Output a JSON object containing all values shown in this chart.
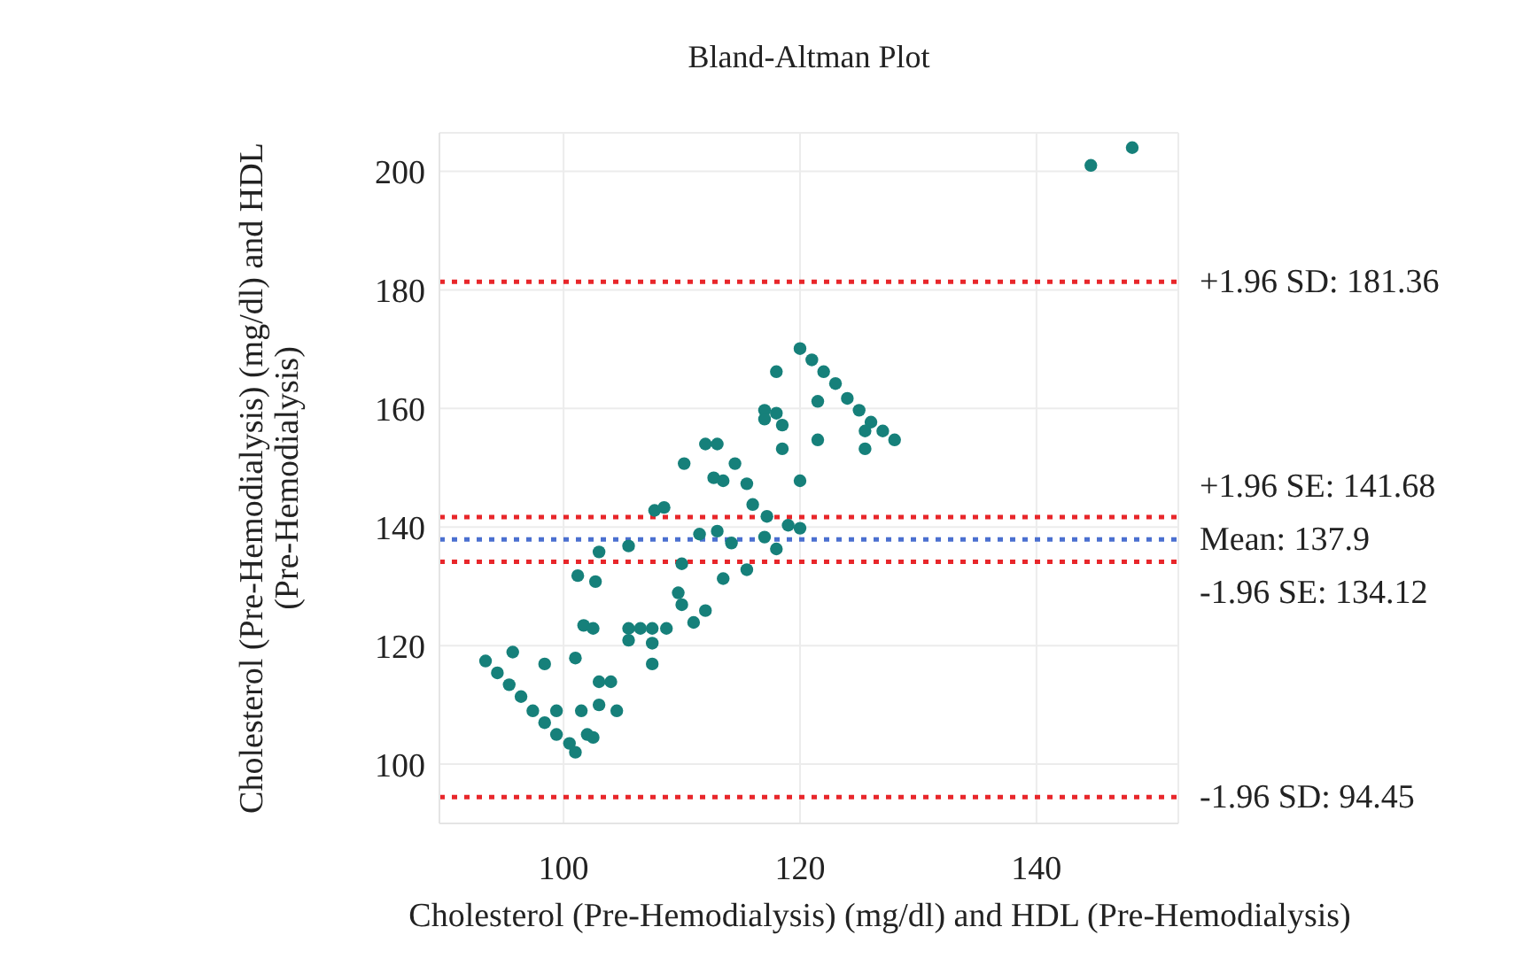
{
  "chart_data": {
    "type": "scatter",
    "title": "Bland-Altman Plot",
    "xlabel": "Cholesterol (Pre-Hemodialysis) (mg/dl) and HDL (Pre-Hemodialysis)",
    "ylabel": "Cholesterol (Pre-Hemodialysis) (mg/dl) and HDL\n(Pre-Hemodialysis)",
    "xlim": [
      89.5,
      152
    ],
    "ylim": [
      90,
      206.5
    ],
    "xticks": [
      100,
      120,
      140
    ],
    "yticks": [
      100,
      120,
      140,
      160,
      180,
      200
    ],
    "grid": true,
    "legend": false,
    "marker": "circle",
    "series": [
      {
        "color": "#16807a",
        "x": [
          144.6,
          148.1,
          93.4,
          94.4,
          95.4,
          96.4,
          97.4,
          98.4,
          99.4,
          100.5,
          101.0,
          95.7,
          98.4,
          101.0,
          99.4,
          101.5,
          103.0,
          104.5,
          104.0,
          103.0,
          102.0,
          102.5,
          101.7,
          102.5,
          101.2,
          102.7,
          103.0,
          105.5,
          107.7,
          108.5,
          110.2,
          112.0,
          113.0,
          112.7,
          114.5,
          113.5,
          115.5,
          116.0,
          117.2,
          119.0,
          120.0,
          117.0,
          118.0,
          115.5,
          113.5,
          114.2,
          113.0,
          111.5,
          110.0,
          109.7,
          110.0,
          111.0,
          112.0,
          108.7,
          107.5,
          106.5,
          105.5,
          105.5,
          107.5,
          107.5,
          117.0,
          118.0,
          118.5,
          117.0,
          118.0,
          118.5,
          120.0,
          121.5,
          121.5,
          120.0,
          121.0,
          122.0,
          123.0,
          124.0,
          125.0,
          126.0,
          127.0,
          128.0,
          125.5,
          125.5
        ],
        "values": [
          201.0,
          204.0,
          117.4,
          115.4,
          113.4,
          111.4,
          109.0,
          107.0,
          105.0,
          103.5,
          102.0,
          118.9,
          116.9,
          117.9,
          109.0,
          109.0,
          110.0,
          109.0,
          113.9,
          113.9,
          105.0,
          104.5,
          123.4,
          122.9,
          131.8,
          130.8,
          135.8,
          136.8,
          142.8,
          143.3,
          150.7,
          154.0,
          154.0,
          148.3,
          150.7,
          147.8,
          147.3,
          143.8,
          141.8,
          140.3,
          139.8,
          138.3,
          136.3,
          132.8,
          131.3,
          137.3,
          139.3,
          138.8,
          133.8,
          128.9,
          126.9,
          123.9,
          125.9,
          122.9,
          122.9,
          122.9,
          122.9,
          120.9,
          120.4,
          116.9,
          159.7,
          159.2,
          157.2,
          158.2,
          166.2,
          153.2,
          147.8,
          161.2,
          154.7,
          170.1,
          168.2,
          166.2,
          164.2,
          161.7,
          159.7,
          157.7,
          156.2,
          154.7,
          156.2,
          153.2
        ]
      }
    ],
    "ref_lines": [
      {
        "axis": "y",
        "value": 181.36,
        "label": "+1.96 SD: 181.36",
        "color": "#e8262a",
        "line_style": "dotted"
      },
      {
        "axis": "y",
        "value": 141.68,
        "label": "+1.96 SE: 141.68",
        "color": "#e8262a",
        "line_style": "dotted"
      },
      {
        "axis": "y",
        "value": 137.9,
        "label": "Mean: 137.9",
        "color": "#4a6fd0",
        "line_style": "dotted"
      },
      {
        "axis": "y",
        "value": 134.12,
        "label": "-1.96 SE: 134.12",
        "color": "#e8262a",
        "line_style": "dotted"
      },
      {
        "axis": "y",
        "value": 94.45,
        "label": "-1.96 SD: 94.45",
        "color": "#e8262a",
        "line_style": "dotted"
      }
    ]
  }
}
